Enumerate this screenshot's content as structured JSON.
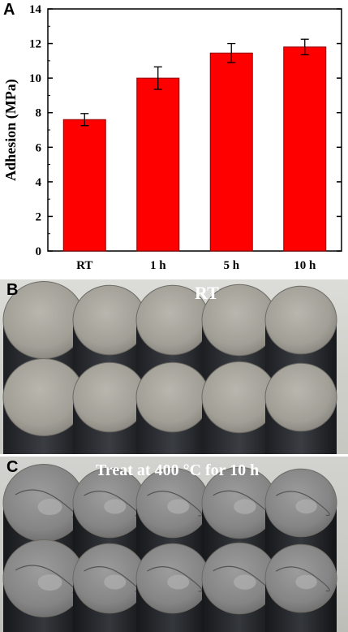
{
  "chart_data": {
    "type": "bar",
    "panel_label": "A",
    "categories": [
      "RT",
      "1 h",
      "5 h",
      "10 h"
    ],
    "values": [
      7.6,
      10.0,
      11.45,
      11.8
    ],
    "errors": [
      0.35,
      0.65,
      0.55,
      0.45
    ],
    "ylabel": "Adhesion (MPa)",
    "xlabel": "",
    "ylim": [
      0,
      14
    ],
    "yticks": [
      0,
      2,
      4,
      6,
      8,
      10,
      12,
      14
    ],
    "bar_color": "#ff0000",
    "bar_edge_color": "#8b0000",
    "grid": false
  },
  "photos": {
    "b": {
      "label": "B",
      "caption": "RT"
    },
    "c": {
      "label": "C",
      "caption": "Treat at 400 °C for 10 h"
    }
  }
}
